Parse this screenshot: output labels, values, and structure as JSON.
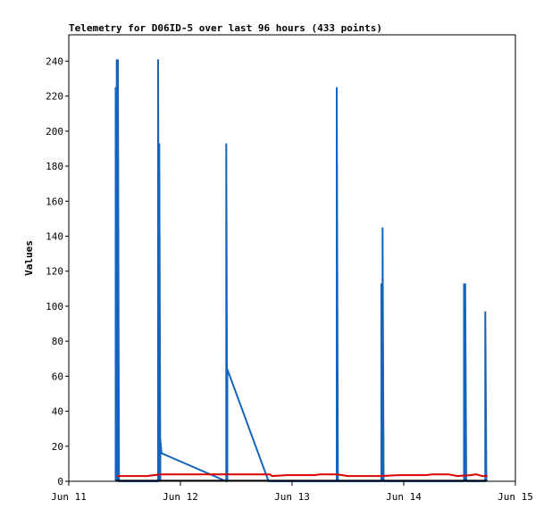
{
  "chart_data": {
    "type": "line",
    "title": "Telemetry for D06ID-5 over last 96 hours (433 points)",
    "xlabel": "",
    "ylabel": "Values",
    "x_domain_days": [
      11,
      15
    ],
    "ylim": [
      0,
      255
    ],
    "x_ticks": [
      {
        "label": "Jun 11",
        "day": 11
      },
      {
        "label": "Jun 12",
        "day": 12
      },
      {
        "label": "Jun 13",
        "day": 13
      },
      {
        "label": "Jun 14",
        "day": 14
      },
      {
        "label": "Jun 15",
        "day": 15
      }
    ],
    "y_ticks": [
      0,
      20,
      40,
      60,
      80,
      100,
      120,
      140,
      160,
      180,
      200,
      220,
      240
    ],
    "grid": false,
    "legend": "none",
    "series": [
      {
        "color": "#1565c0",
        "points": [
          [
            11.42,
            0
          ],
          [
            11.42,
            225
          ],
          [
            11.43,
            0
          ],
          [
            11.43,
            241
          ],
          [
            11.44,
            0
          ],
          [
            11.44,
            241
          ],
          [
            11.45,
            0
          ],
          [
            11.8,
            0
          ],
          [
            11.8,
            241
          ],
          [
            11.81,
            0
          ],
          [
            11.81,
            193
          ],
          [
            11.82,
            0
          ],
          [
            11.82,
            24
          ],
          [
            11.83,
            16
          ],
          [
            12.41,
            0
          ],
          [
            12.41,
            193
          ],
          [
            12.42,
            0
          ],
          [
            12.42,
            64
          ],
          [
            12.79,
            0
          ],
          [
            13.4,
            0
          ],
          [
            13.4,
            225
          ],
          [
            13.41,
            0
          ],
          [
            13.8,
            0
          ],
          [
            13.8,
            113
          ],
          [
            13.81,
            0
          ],
          [
            13.81,
            145
          ],
          [
            13.82,
            0
          ],
          [
            14.54,
            0
          ],
          [
            14.54,
            113
          ],
          [
            14.55,
            0
          ],
          [
            14.55,
            113
          ],
          [
            14.56,
            0
          ],
          [
            14.73,
            0
          ],
          [
            14.73,
            97
          ],
          [
            14.74,
            0
          ]
        ]
      },
      {
        "color": "#dd0000",
        "points": [
          [
            11.43,
            3
          ],
          [
            11.7,
            3
          ],
          [
            11.82,
            4
          ],
          [
            12.0,
            4
          ],
          [
            12.4,
            4
          ],
          [
            12.8,
            4
          ],
          [
            12.82,
            3
          ],
          [
            12.95,
            3.5
          ],
          [
            13.2,
            3.5
          ],
          [
            13.25,
            4
          ],
          [
            13.4,
            4
          ],
          [
            13.5,
            3
          ],
          [
            13.8,
            3
          ],
          [
            13.95,
            3.5
          ],
          [
            14.2,
            3.5
          ],
          [
            14.25,
            4
          ],
          [
            14.4,
            4
          ],
          [
            14.48,
            3
          ],
          [
            14.6,
            3.5
          ],
          [
            14.65,
            4
          ],
          [
            14.7,
            3
          ],
          [
            14.75,
            3
          ]
        ]
      },
      {
        "color": "#000000",
        "points": [
          [
            11.42,
            0.3
          ],
          [
            14.75,
            0.3
          ]
        ]
      }
    ]
  }
}
